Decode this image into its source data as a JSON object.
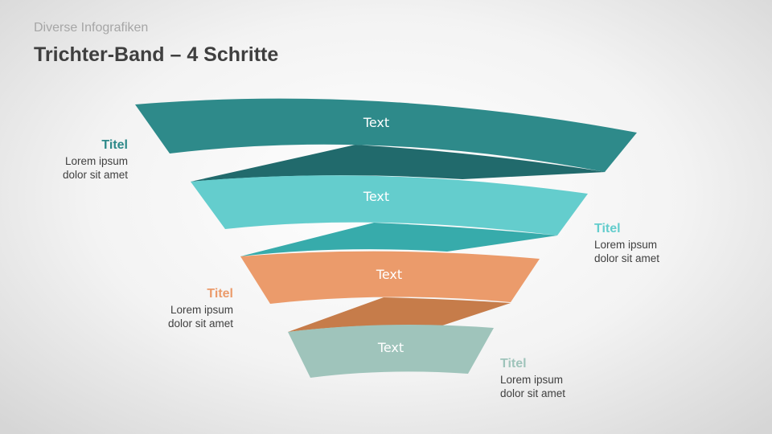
{
  "header": {
    "kicker": "Diverse Infografiken",
    "title": "Trichter-Band – 4 Schritte"
  },
  "colors": {
    "band1": "#2e8a8a",
    "band2": "#64cdcd",
    "band3": "#eb9b6b",
    "band4": "#9fc4bb"
  },
  "bands": [
    {
      "label": "Text"
    },
    {
      "label": "Text"
    },
    {
      "label": "Text"
    },
    {
      "label": "Text"
    }
  ],
  "notes": [
    {
      "title": "Titel",
      "line1": "Lorem ipsum",
      "line2": "dolor sit amet"
    },
    {
      "title": "Titel",
      "line1": "Lorem ipsum",
      "line2": "dolor sit amet"
    },
    {
      "title": "Titel",
      "line1": "Lorem ipsum",
      "line2": "dolor sit amet"
    },
    {
      "title": "Titel",
      "line1": "Lorem ipsum",
      "line2": "dolor sit amet"
    }
  ]
}
